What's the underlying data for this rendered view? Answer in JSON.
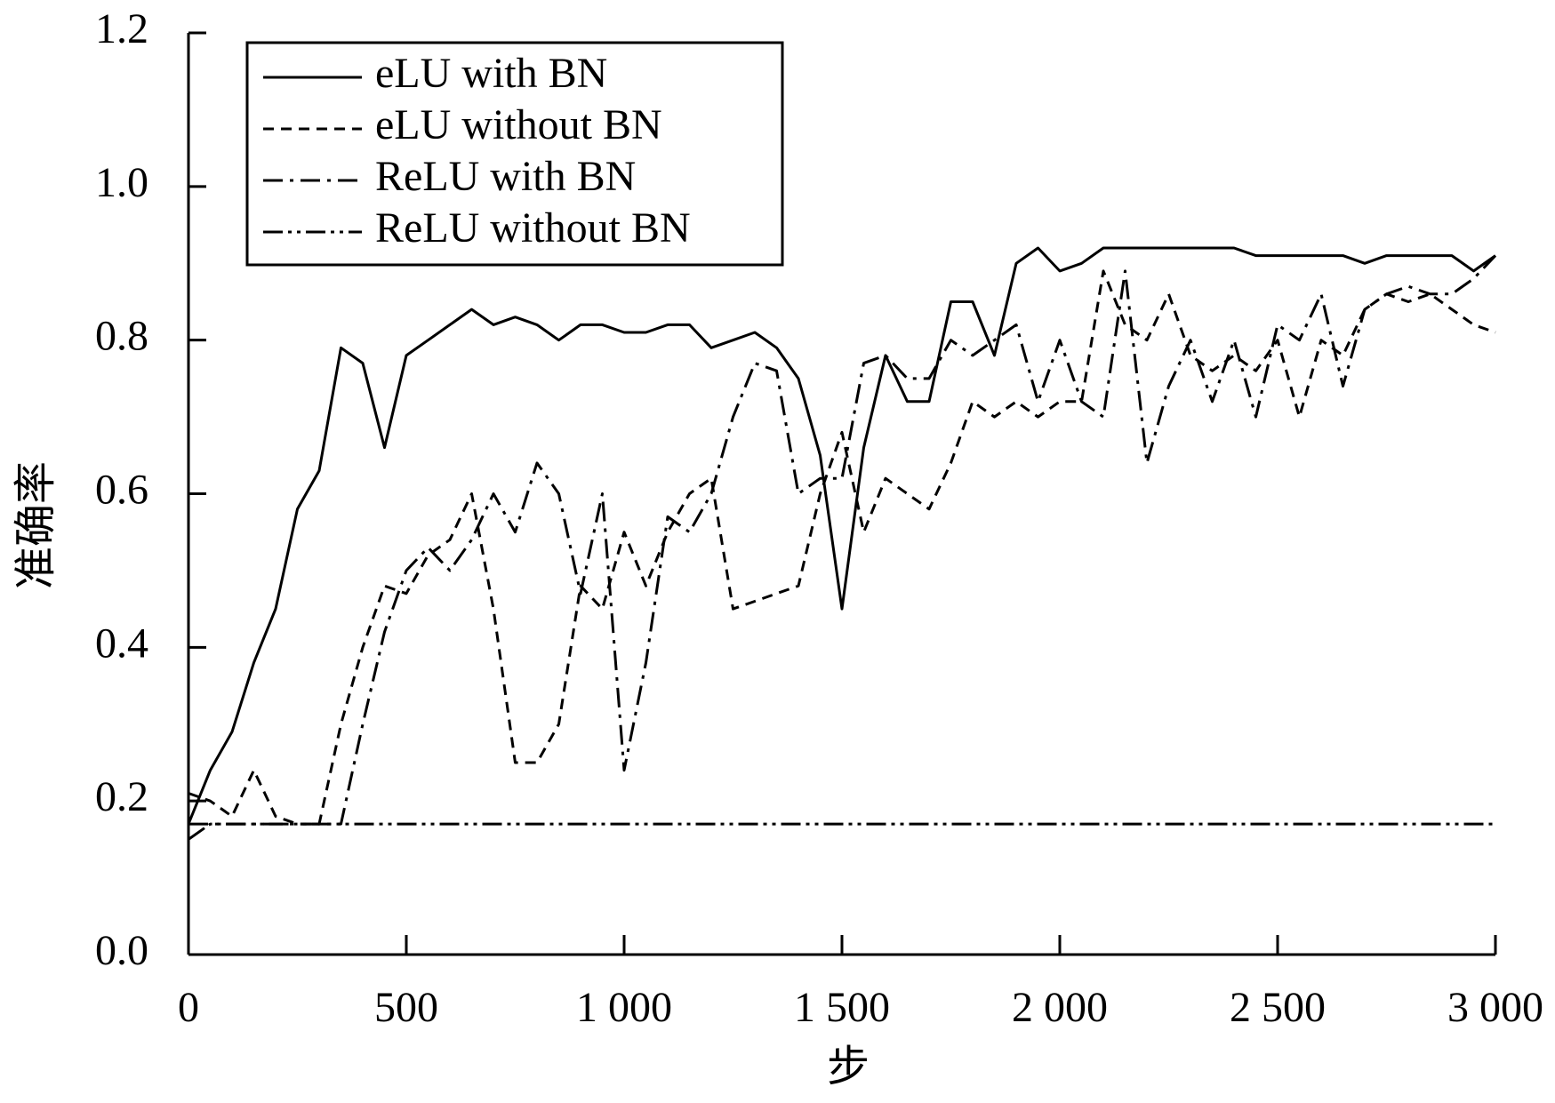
{
  "chart_data": {
    "type": "line",
    "x_label": "步",
    "y_label": "准确率",
    "x": [
      0,
      50,
      100,
      150,
      200,
      250,
      300,
      350,
      400,
      450,
      500,
      550,
      600,
      650,
      700,
      750,
      800,
      850,
      900,
      950,
      1000,
      1050,
      1100,
      1150,
      1200,
      1250,
      1300,
      1350,
      1400,
      1450,
      1500,
      1550,
      1600,
      1650,
      1700,
      1750,
      1800,
      1850,
      1900,
      1950,
      2000,
      2050,
      2100,
      2150,
      2200,
      2250,
      2300,
      2350,
      2400,
      2450,
      2500,
      2550,
      2600,
      2650,
      2700,
      2750,
      2800,
      2850,
      2900,
      2950,
      3000
    ],
    "series": [
      {
        "name": "eLU with BN",
        "color": "#000000",
        "dash": "solid",
        "values": [
          0.17,
          0.24,
          0.29,
          0.38,
          0.45,
          0.58,
          0.63,
          0.79,
          0.77,
          0.66,
          0.78,
          0.8,
          0.82,
          0.84,
          0.82,
          0.83,
          0.82,
          0.8,
          0.82,
          0.82,
          0.81,
          0.81,
          0.82,
          0.82,
          0.79,
          0.8,
          0.81,
          0.79,
          0.75,
          0.65,
          0.45,
          0.66,
          0.78,
          0.72,
          0.72,
          0.85,
          0.85,
          0.78,
          0.9,
          0.92,
          0.89,
          0.9,
          0.92,
          0.92,
          0.92,
          0.92,
          0.92,
          0.92,
          0.92,
          0.91,
          0.91,
          0.91,
          0.91,
          0.91,
          0.9,
          0.91,
          0.91,
          0.91,
          0.91,
          0.89,
          0.91
        ]
      },
      {
        "name": "eLU without BN",
        "color": "#000000",
        "dash": "dashed",
        "values": [
          0.21,
          0.2,
          0.18,
          0.24,
          0.18,
          0.17,
          0.17,
          0.3,
          0.4,
          0.48,
          0.47,
          0.52,
          0.54,
          0.6,
          0.45,
          0.25,
          0.25,
          0.3,
          0.48,
          0.45,
          0.55,
          0.48,
          0.55,
          0.6,
          0.62,
          0.45,
          0.46,
          0.47,
          0.48,
          0.6,
          0.68,
          0.55,
          0.62,
          0.6,
          0.58,
          0.64,
          0.72,
          0.7,
          0.72,
          0.7,
          0.72,
          0.72,
          0.89,
          0.82,
          0.8,
          0.86,
          0.78,
          0.76,
          0.78,
          0.76,
          0.8,
          0.7,
          0.8,
          0.78,
          0.84,
          0.86,
          0.85,
          0.86,
          0.84,
          0.82,
          0.81
        ]
      },
      {
        "name": "ReLU with BN",
        "color": "#000000",
        "dash": "dashdot",
        "values": [
          0.17,
          0.17,
          0.17,
          0.17,
          0.17,
          0.17,
          0.17,
          0.17,
          0.3,
          0.42,
          0.5,
          0.53,
          0.5,
          0.54,
          0.6,
          0.55,
          0.64,
          0.6,
          0.47,
          0.6,
          0.24,
          0.38,
          0.57,
          0.55,
          0.6,
          0.7,
          0.77,
          0.76,
          0.6,
          0.62,
          0.62,
          0.77,
          0.78,
          0.75,
          0.75,
          0.8,
          0.78,
          0.8,
          0.82,
          0.72,
          0.8,
          0.72,
          0.7,
          0.89,
          0.64,
          0.74,
          0.8,
          0.72,
          0.8,
          0.7,
          0.82,
          0.8,
          0.86,
          0.74,
          0.84,
          0.86,
          0.87,
          0.86,
          0.86,
          0.88,
          0.91
        ]
      },
      {
        "name": "ReLU without BN",
        "color": "#000000",
        "dash": "dashdotdot",
        "values": [
          0.15,
          0.17,
          0.17,
          0.17,
          0.17,
          0.17,
          0.17,
          0.17,
          0.17,
          0.17,
          0.17,
          0.17,
          0.17,
          0.17,
          0.17,
          0.17,
          0.17,
          0.17,
          0.17,
          0.17,
          0.17,
          0.17,
          0.17,
          0.17,
          0.17,
          0.17,
          0.17,
          0.17,
          0.17,
          0.17,
          0.17,
          0.17,
          0.17,
          0.17,
          0.17,
          0.17,
          0.17,
          0.17,
          0.17,
          0.17,
          0.17,
          0.17,
          0.17,
          0.17,
          0.17,
          0.17,
          0.17,
          0.17,
          0.17,
          0.17,
          0.17,
          0.17,
          0.17,
          0.17,
          0.17,
          0.17,
          0.17,
          0.17,
          0.17,
          0.17,
          0.17
        ]
      }
    ],
    "xlim": [
      0,
      3000
    ],
    "xticks": [
      0,
      500,
      {
        "value": 1000,
        "label": "1 000"
      },
      {
        "value": 1500,
        "label": "1 500"
      },
      {
        "value": 2000,
        "label": "2 000"
      },
      {
        "value": 2500,
        "label": "2 500"
      },
      {
        "value": 3000,
        "label": "3 000"
      }
    ],
    "ylim": [
      0,
      1.2
    ],
    "yticks": [
      {
        "value": 0,
        "label": "0.0"
      },
      0.2,
      0.4,
      0.6,
      0.8,
      {
        "value": 1,
        "label": "1.0"
      },
      1.2
    ],
    "legend": "upper left"
  }
}
